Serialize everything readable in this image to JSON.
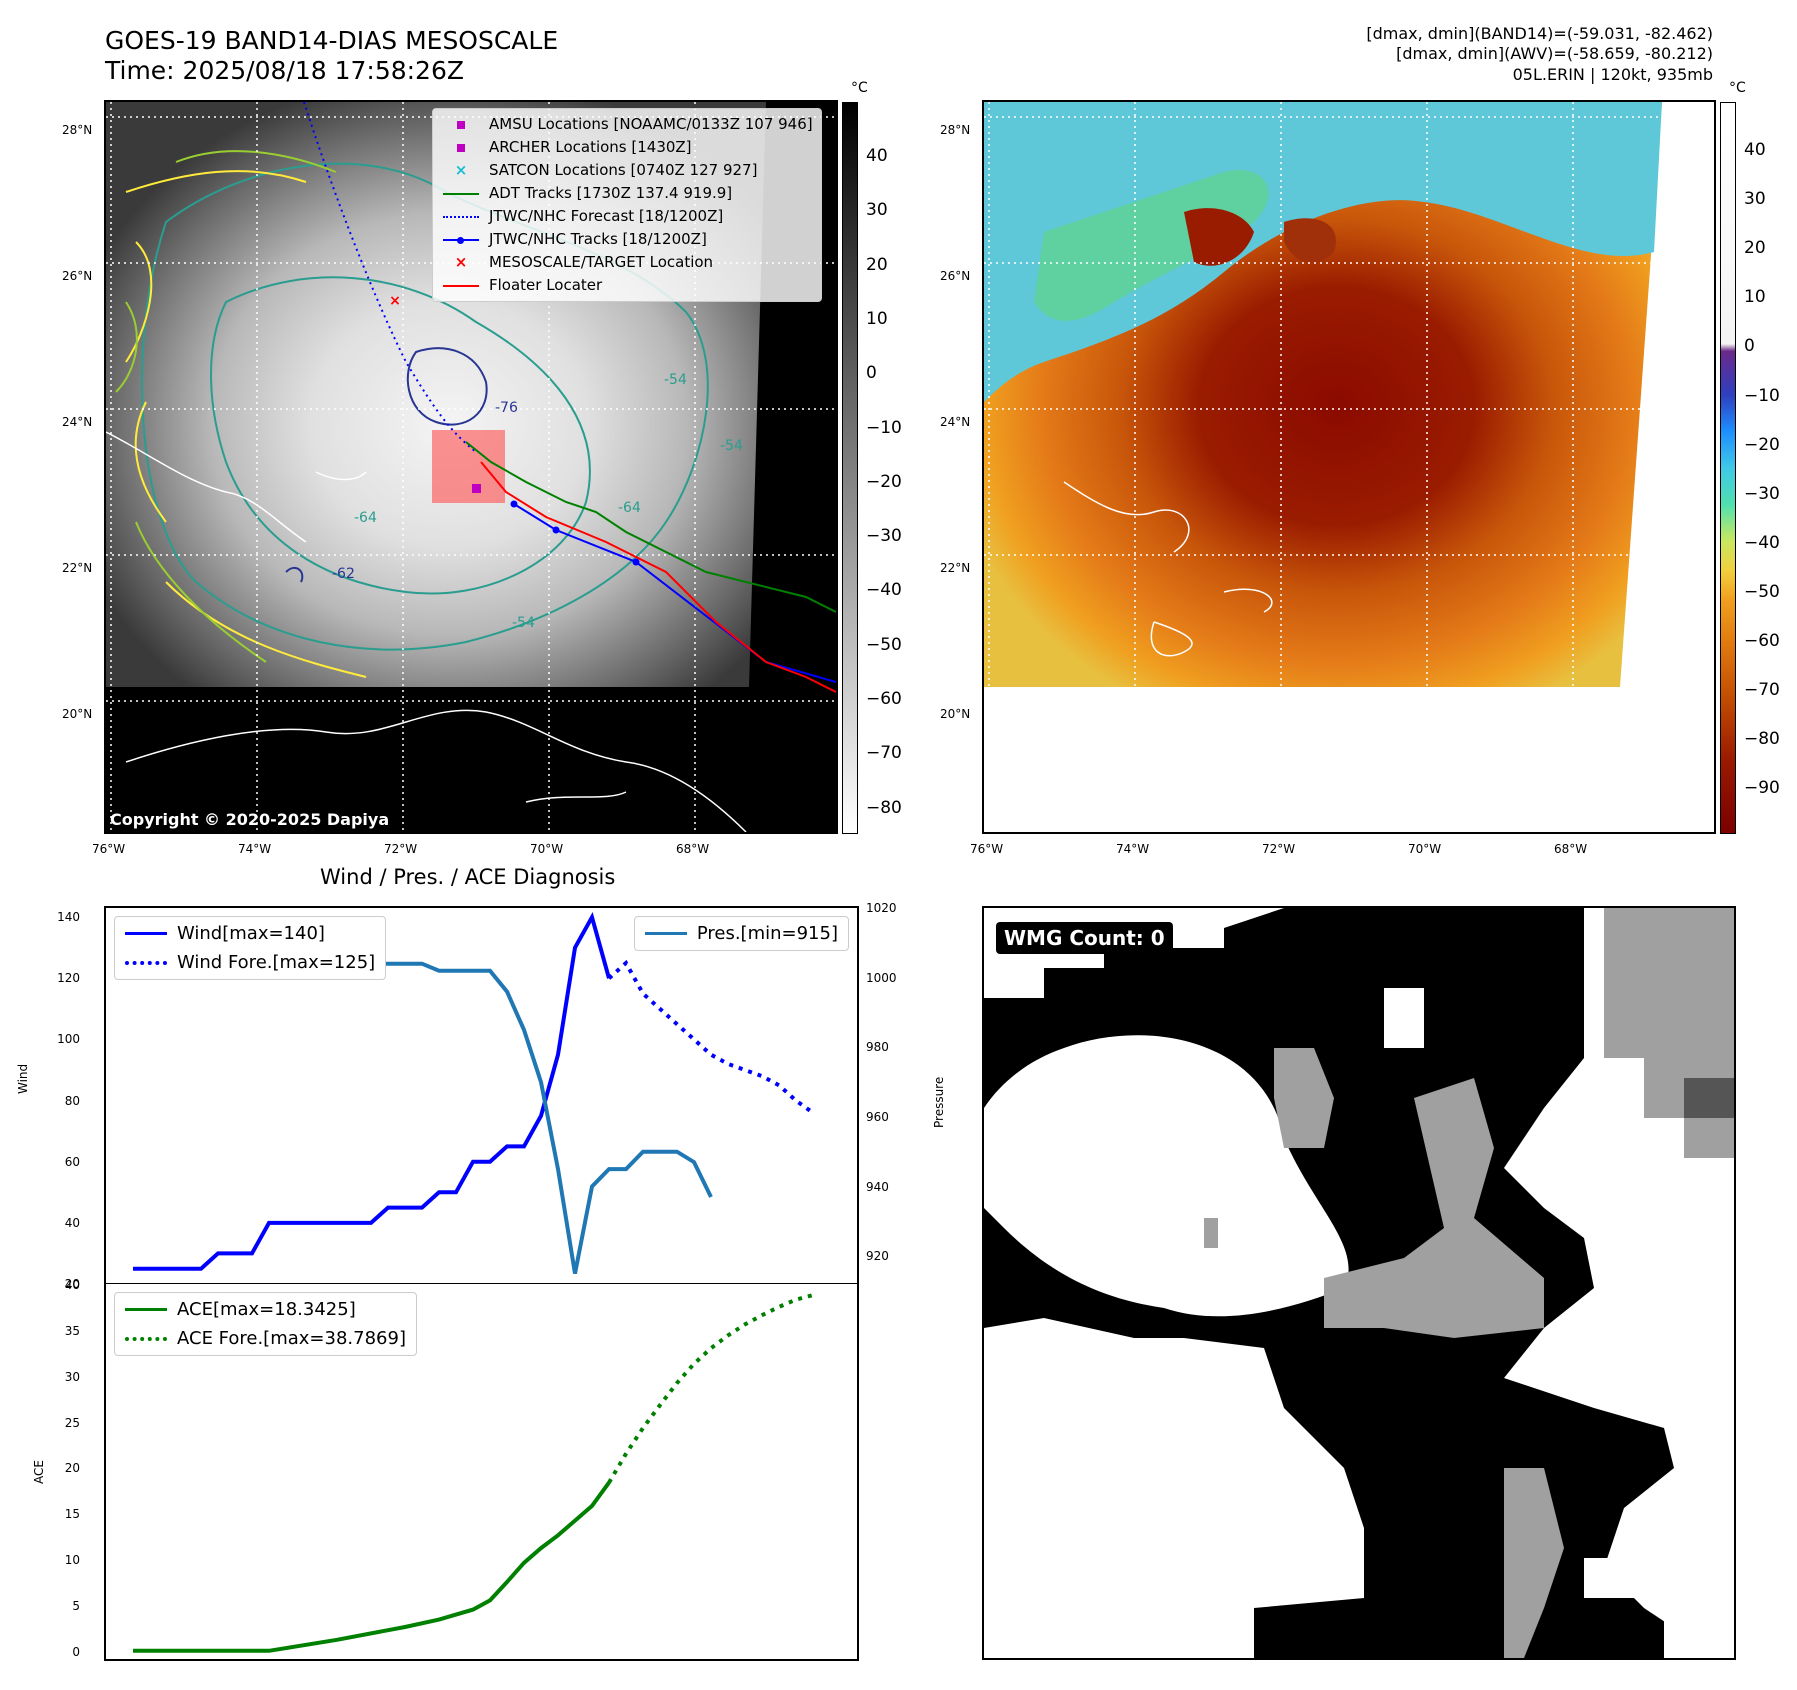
{
  "header": {
    "title_line1": "GOES-19 BAND14-DIAS MESOSCALE",
    "title_line2": "Time: 2025/08/18 17:58:26Z",
    "info_line1": "[dmax, dmin](BAND14)=(-59.031, -82.462)",
    "info_line2": "[dmax, dmin](AWV)=(-58.659, -80.212)",
    "info_line3": "05L.ERIN | 120kt, 935mb"
  },
  "map_axes": {
    "lat_labels": [
      "28°N",
      "26°N",
      "24°N",
      "22°N",
      "20°N"
    ],
    "lon_labels": [
      "76°W",
      "74°W",
      "72°W",
      "70°W",
      "68°W"
    ]
  },
  "ir_panel": {
    "copyright": "Copyright © 2020-2025 Dapiya",
    "colorbar_unit": "°C",
    "colorbar_ticks": [
      "40",
      "30",
      "20",
      "10",
      "0",
      "−10",
      "−20",
      "−30",
      "−40",
      "−50",
      "−60",
      "−70",
      "−80"
    ],
    "contour_labels": [
      "-76",
      "-64",
      "-64",
      "-62",
      "-54",
      "-54",
      "-54"
    ],
    "legend": [
      {
        "label": "AMSU Locations [NOAAMC/0133Z 107 946]",
        "symbol": "square",
        "color": "#c000c0"
      },
      {
        "label": "ARCHER Locations [1430Z]",
        "symbol": "square",
        "color": "#c000c0"
      },
      {
        "label": "SATCON Locations [0740Z 127 927]",
        "symbol": "x",
        "color": "#17becf"
      },
      {
        "label": "ADT Tracks [1730Z 137.4 919.9]",
        "symbol": "line",
        "color": "#008000"
      },
      {
        "label": "JTWC/NHC Forecast [18/1200Z]",
        "symbol": "dotted",
        "color": "#0000ff"
      },
      {
        "label": "JTWC/NHC Tracks [18/1200Z]",
        "symbol": "line-dot",
        "color": "#0000ff"
      },
      {
        "label": "MESOSCALE/TARGET Location",
        "symbol": "x",
        "color": "#ff0000"
      },
      {
        "label": "Floater Locater",
        "symbol": "line",
        "color": "#ff0000"
      }
    ]
  },
  "awv_panel": {
    "colorbar_unit": "°C",
    "colorbar_ticks": [
      "40",
      "30",
      "20",
      "10",
      "0",
      "−10",
      "−20",
      "−30",
      "−40",
      "−50",
      "−60",
      "−70",
      "−80",
      "−90"
    ]
  },
  "wmg_panel": {
    "label": "WMG Count: 0"
  },
  "chart_data": [
    {
      "type": "line",
      "title": "Wind / Pres. / ACE Diagnosis",
      "ylabel": "Wind",
      "y2label": "Pressure",
      "ylim": [
        20,
        143
      ],
      "y2lim": [
        912,
        1020
      ],
      "yticks": [
        "140",
        "120",
        "100",
        "80",
        "60",
        "40",
        "20"
      ],
      "y2ticks": [
        "1020",
        "1000",
        "980",
        "960",
        "940",
        "920"
      ],
      "series": [
        {
          "name": "Wind[max=140]",
          "color": "#0000ff",
          "style": "solid",
          "x": [
            0,
            1,
            2,
            3,
            4,
            5,
            6,
            7,
            8,
            9,
            10,
            11,
            12,
            13,
            14,
            15,
            16,
            17,
            18,
            19,
            20,
            21,
            22,
            23,
            24,
            25,
            26,
            27,
            28
          ],
          "values": [
            25,
            25,
            25,
            25,
            25,
            30,
            30,
            30,
            40,
            40,
            40,
            40,
            40,
            40,
            40,
            45,
            45,
            45,
            50,
            50,
            60,
            60,
            65,
            65,
            75,
            95,
            130,
            140,
            120
          ]
        },
        {
          "name": "Wind Fore.[max=125]",
          "color": "#0000ff",
          "style": "dotted",
          "x": [
            28,
            29,
            30,
            31,
            32,
            33,
            34,
            35,
            36,
            37,
            38,
            39,
            40
          ],
          "values": [
            120,
            125,
            115,
            110,
            105,
            100,
            95,
            92,
            90,
            88,
            85,
            80,
            76
          ]
        },
        {
          "name": "Pres.[min=915]",
          "color": "#1f77b4",
          "style": "solid",
          "x": [
            0,
            1,
            2,
            3,
            4,
            5,
            6,
            7,
            8,
            9,
            10,
            11,
            12,
            13,
            14,
            15,
            16,
            17,
            18,
            19,
            20,
            21,
            22,
            23,
            24,
            25,
            26,
            27,
            28,
            29,
            30,
            31,
            32,
            33,
            34
          ],
          "values": [
            1013,
            1013,
            1008,
            1007,
            1006,
            1006,
            1006,
            1006,
            1006,
            1005,
            1005,
            1006,
            1006,
            1005,
            1004,
            1004,
            1004,
            1004,
            1002,
            1002,
            1002,
            1002,
            996,
            985,
            970,
            945,
            915,
            940,
            945,
            945,
            950,
            950,
            950,
            947,
            937
          ]
        }
      ]
    },
    {
      "type": "line",
      "ylabel": "ACE",
      "ylim": [
        -1,
        40
      ],
      "yticks": [
        "40",
        "35",
        "30",
        "25",
        "20",
        "15",
        "10",
        "5",
        "0"
      ],
      "series": [
        {
          "name": "ACE[max=18.3425]",
          "color": "#008000",
          "style": "solid",
          "x": [
            0,
            4,
            8,
            12,
            16,
            18,
            20,
            21,
            22,
            23,
            24,
            25,
            26,
            27,
            28
          ],
          "values": [
            0,
            0,
            0,
            1.2,
            2.6,
            3.4,
            4.5,
            5.5,
            7.5,
            9.6,
            11.2,
            12.6,
            14.2,
            15.8,
            18.34
          ]
        },
        {
          "name": "ACE Fore.[max=38.7869]",
          "color": "#008000",
          "style": "dotted",
          "x": [
            28,
            29,
            30,
            31,
            32,
            33,
            34,
            35,
            36,
            37,
            38,
            39,
            40
          ],
          "values": [
            18.34,
            21.5,
            24.3,
            26.8,
            29.2,
            31.3,
            33.0,
            34.4,
            35.6,
            36.6,
            37.5,
            38.3,
            38.79
          ]
        }
      ]
    }
  ]
}
